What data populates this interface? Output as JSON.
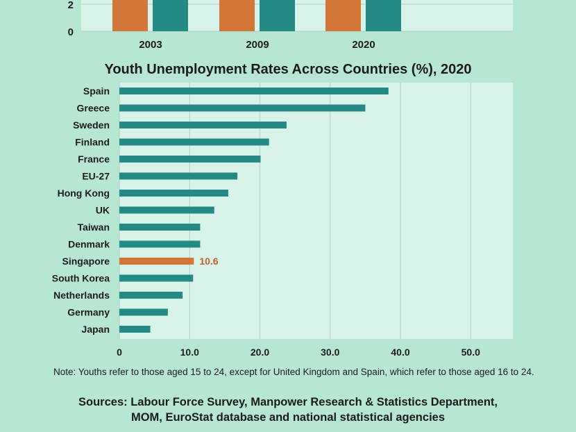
{
  "colors": {
    "page_bg": "#b5e7d3",
    "plot_bg": "#d8f3ea",
    "grid": "#b4cdc6",
    "teal": "#258985",
    "orange": "#d2763a",
    "highlight_label": "#c0602a",
    "text": "#1b1b1b"
  },
  "chart_data": [
    {
      "type": "bar",
      "title": "",
      "categories": [
        "2003",
        "2009",
        "2020"
      ],
      "ytick_labels": [
        "0",
        "2"
      ],
      "ylim": [
        0,
        2
      ],
      "note": "Chart is cropped at the top; bars extend beyond the visible area.",
      "series": [
        {
          "color_name": "orange"
        },
        {
          "color_name": "teal"
        }
      ]
    },
    {
      "type": "bar",
      "orientation": "horizontal",
      "title": "Youth Unemployment Rates Across Countries (%), 2020",
      "categories": [
        "Spain",
        "Greece",
        "Sweden",
        "Finland",
        "France",
        "EU-27",
        "Hong Kong",
        "UK",
        "Taiwan",
        "Denmark",
        "Singapore",
        "South Korea",
        "Netherlands",
        "Germany",
        "Japan"
      ],
      "values": [
        38.3,
        35.0,
        23.8,
        21.3,
        20.1,
        16.8,
        15.5,
        13.5,
        11.5,
        11.5,
        10.6,
        10.5,
        9.0,
        6.9,
        4.4
      ],
      "highlight": "Singapore",
      "highlight_label": "10.6",
      "xlim": [
        0,
        56
      ],
      "xticks": [
        0,
        10,
        20,
        30,
        40,
        50
      ],
      "xtick_labels": [
        "0",
        "10.0",
        "20.0",
        "30.0",
        "40.0",
        "50.0"
      ],
      "grid": true
    }
  ],
  "note_text": "Note: Youths refer to those aged 15 to 24, except for United Kingdom and Spain, which refer to those aged 16 to 24.",
  "sources_line1": "Sources: Labour Force Survey, Manpower Research & Statistics Department,",
  "sources_line2": "MOM, EuroStat database and national statistical agencies"
}
